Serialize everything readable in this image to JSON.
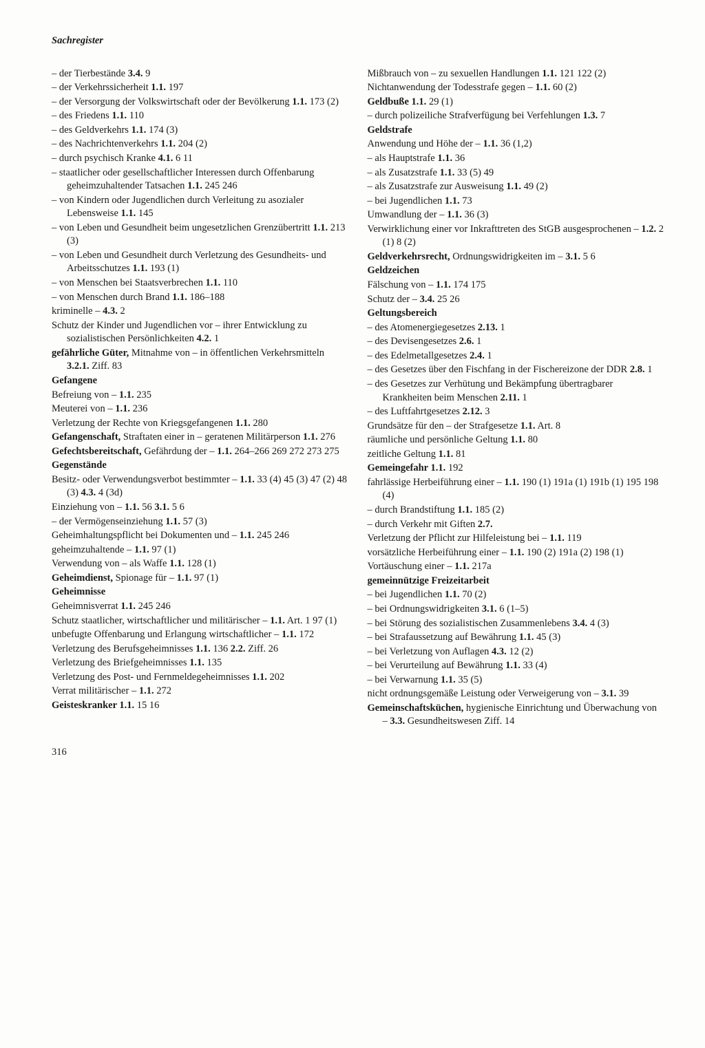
{
  "header": "Sachregister",
  "pagenum": "316",
  "left": [
    {
      "d": true,
      "h": "der Tierbestände  <b>3.4.</b> 9"
    },
    {
      "d": true,
      "h": "der Verkehrssicherheit  <b>1.1.</b> 197"
    },
    {
      "d": true,
      "h": "der Versorgung der Volkswirtschaft oder der Bevölkerung  <b>1.1.</b> 173 (2)"
    },
    {
      "d": true,
      "h": "des Friedens  <b>1.1.</b> 110"
    },
    {
      "d": true,
      "h": "des Geldverkehrs  <b>1.1.</b> 174 (3)"
    },
    {
      "d": true,
      "h": "des Nachrichtenverkehrs  <b>1.1.</b> 204 (2)"
    },
    {
      "d": true,
      "h": "durch psychisch Kranke  <b>4.1.</b> 6 11"
    },
    {
      "d": true,
      "h": "staatlicher oder gesellschaftlicher Interessen durch Offenbarung geheimzuhaltender Tatsachen  <b>1.1.</b> 245 246"
    },
    {
      "d": true,
      "h": "von Kindern oder Jugendlichen durch Verleitung zu asozialer Lebensweise  <b>1.1.</b> 145"
    },
    {
      "d": true,
      "h": "von Leben und Gesundheit beim ungesetzlichen Grenzübertritt  <b>1.1.</b> 213 (3)"
    },
    {
      "d": true,
      "h": "von Leben und Gesundheit durch Verletzung des Gesundheits- und Arbeitsschutzes <b>1.1.</b> 193 (1)"
    },
    {
      "d": true,
      "h": "von Menschen bei Staatsverbrechen  <b>1.1.</b> 110"
    },
    {
      "d": true,
      "h": "von Menschen durch Brand  <b>1.1.</b> 186–188"
    },
    {
      "d": false,
      "h": "kriminelle –  <b>4.3.</b> 2"
    },
    {
      "d": false,
      "h": "Schutz der Kinder und Jugendlichen vor – ihrer Entwicklung zu sozialistischen Persönlichkeiten  <b>4.2.</b> 1"
    },
    {
      "d": false,
      "h": "<b>gefährliche Güter,</b> Mitnahme von – in öffentlichen Verkehrsmitteln  <b>3.2.1.</b> Ziff. 83"
    },
    {
      "d": false,
      "h": "<b>Gefangene</b>"
    },
    {
      "d": false,
      "h": "Befreiung von –  <b>1.1.</b> 235"
    },
    {
      "d": false,
      "h": "Meuterei von –  <b>1.1.</b> 236"
    },
    {
      "d": false,
      "h": "Verletzung der Rechte von Kriegsgefangenen  <b>1.1.</b> 280"
    },
    {
      "d": false,
      "h": "<b>Gefangenschaft,</b> Straftaten einer in – geratenen Militärperson  <b>1.1.</b> 276"
    },
    {
      "d": false,
      "h": "<b>Gefechtsbereitschaft,</b> Gefährdung der –  <b>1.1.</b> 264–266 269 272 273 275"
    },
    {
      "d": false,
      "h": "<b>Gegenstände</b>"
    },
    {
      "d": false,
      "h": "Besitz- oder Verwendungsverbot bestimmter – <b>1.1.</b> 33 (4) 45 (3) 47 (2) 48 (3)  <b>4.3.</b> 4 (3d)"
    },
    {
      "d": false,
      "h": "Einziehung von –  <b>1.1.</b> 56  <b>3.1.</b> 5 6"
    },
    {
      "d": true,
      "h": "der Vermögenseinziehung  <b>1.1.</b> 57 (3)"
    },
    {
      "d": false,
      "h": "Geheimhaltungspflicht bei Dokumenten und – <b>1.1.</b> 245 246"
    },
    {
      "d": false,
      "h": "geheimzuhaltende –  <b>1.1.</b> 97 (1)"
    },
    {
      "d": false,
      "h": "Verwendung von – als Waffe  <b>1.1.</b> 128 (1)"
    },
    {
      "d": false,
      "h": "<b>Geheimdienst,</b> Spionage für –  <b>1.1.</b> 97 (1)"
    },
    {
      "d": false,
      "h": "<b>Geheimnisse</b>"
    },
    {
      "d": false,
      "h": "Geheimnisverrat  <b>1.1.</b> 245 246"
    },
    {
      "d": false,
      "h": "Schutz staatlicher, wirtschaftlicher und militärischer –  <b>1.1.</b> Art. 1 97 (1)"
    },
    {
      "d": false,
      "h": "unbefugte Offenbarung und Erlangung wirtschaftlicher –  <b>1.1.</b> 172"
    },
    {
      "d": false,
      "h": "Verletzung des Berufsgeheimnisses  <b>1.1.</b> 136  <b>2.2.</b> Ziff. 26"
    },
    {
      "d": false,
      "h": "Verletzung des Briefgeheimnisses  <b>1.1.</b> 135"
    },
    {
      "d": false,
      "h": "Verletzung des Post- und Fernmeldegeheimnisses  <b>1.1.</b> 202"
    },
    {
      "d": false,
      "h": "Verrat militärischer –  <b>1.1.</b> 272"
    },
    {
      "d": false,
      "h": "<b>Geisteskranker  1.1.</b> 15 16"
    }
  ],
  "right": [
    {
      "d": false,
      "h": "Mißbrauch von – zu sexuellen Handlungen  <b>1.1.</b> 121 122 (2)"
    },
    {
      "d": false,
      "h": "Nichtanwendung der Todesstrafe gegen –  <b>1.1.</b> 60 (2)"
    },
    {
      "d": false,
      "h": "<b>Geldbuße  1.1.</b> 29 (1)"
    },
    {
      "d": true,
      "h": "durch polizeiliche Strafverfügung bei Verfehlungen  <b>1.3.</b> 7"
    },
    {
      "d": false,
      "h": "<b>Geldstrafe</b>"
    },
    {
      "d": false,
      "h": "Anwendung und Höhe der –  <b>1.1.</b> 36 (1,2)"
    },
    {
      "d": true,
      "h": "als Hauptstrafe  <b>1.1.</b> 36"
    },
    {
      "d": true,
      "h": "als Zusatzstrafe  <b>1.1.</b> 33 (5) 49"
    },
    {
      "d": true,
      "h": "als Zusatzstrafe zur Ausweisung  <b>1.1.</b> 49 (2)"
    },
    {
      "d": true,
      "h": "bei Jugendlichen  <b>1.1.</b> 73"
    },
    {
      "d": false,
      "h": "Umwandlung der –  <b>1.1.</b> 36 (3)"
    },
    {
      "d": false,
      "h": "Verwirklichung einer vor Inkrafttreten des StGB ausgesprochenen –  <b>1.2.</b> 2 (1) 8 (2)"
    },
    {
      "d": false,
      "h": "<b>Geldverkehrsrecht,</b> Ordnungswidrigkeiten im – <b>3.1.</b> 5 6"
    },
    {
      "d": false,
      "h": "<b>Geldzeichen</b>"
    },
    {
      "d": false,
      "h": "Fälschung von –  <b>1.1.</b> 174 175"
    },
    {
      "d": false,
      "h": "Schutz der –  <b>3.4.</b> 25 26"
    },
    {
      "d": false,
      "h": "<b>Geltungsbereich</b>"
    },
    {
      "d": true,
      "h": "des Atomenergiegesetzes  <b>2.13.</b> 1"
    },
    {
      "d": true,
      "h": "des Devisengesetzes  <b>2.6.</b> 1"
    },
    {
      "d": true,
      "h": "des Edelmetallgesetzes  <b>2.4.</b> 1"
    },
    {
      "d": true,
      "h": "des Gesetzes über den Fischfang in der Fischereizone der DDR  <b>2.8.</b> 1"
    },
    {
      "d": true,
      "h": "des Gesetzes zur Verhütung und Bekämpfung übertragbarer Krankheiten beim Menschen  <b>2.11.</b> 1"
    },
    {
      "d": true,
      "h": "des Luftfahrtgesetzes  <b>2.12.</b> 3"
    },
    {
      "d": false,
      "h": "Grundsätze für den – der Strafgesetze  <b>1.1.</b> Art. 8"
    },
    {
      "d": false,
      "h": "räumliche und persönliche Geltung  <b>1.1.</b> 80"
    },
    {
      "d": false,
      "h": "zeitliche Geltung  <b>1.1.</b> 81"
    },
    {
      "d": false,
      "h": "<b>Gemeingefahr  1.1.</b> 192"
    },
    {
      "d": false,
      "h": "fahrlässige Herbeiführung einer –  <b>1.1.</b> 190 (1) 191a (1) 191b (1) 195 198 (4)"
    },
    {
      "d": true,
      "h": "durch Brandstiftung  <b>1.1.</b> 185 (2)"
    },
    {
      "d": true,
      "h": "durch Verkehr mit Giften  <b>2.7.</b>"
    },
    {
      "d": false,
      "h": "Verletzung der Pflicht zur Hilfeleistung bei – <b>1.1.</b> 119"
    },
    {
      "d": false,
      "h": "vorsätzliche Herbeiführung einer –  <b>1.1.</b> 190 (2) 191a (2) 198 (1)"
    },
    {
      "d": false,
      "h": "Vortäuschung einer –  <b>1.1.</b> 217a"
    },
    {
      "d": false,
      "h": "<b>gemeinnützige Freizeitarbeit</b>"
    },
    {
      "d": true,
      "h": "bei Jugendlichen  <b>1.1.</b> 70 (2)"
    },
    {
      "d": true,
      "h": "bei Ordnungswidrigkeiten  <b>3.1.</b> 6 (1–5)"
    },
    {
      "d": true,
      "h": "bei Störung des sozialistischen Zusammenlebens  <b>3.4.</b> 4 (3)"
    },
    {
      "d": true,
      "h": "bei Strafaussetzung auf Bewährung  <b>1.1.</b> 45 (3)"
    },
    {
      "d": true,
      "h": "bei Verletzung von Auflagen  <b>4.3.</b> 12 (2)"
    },
    {
      "d": true,
      "h": "bei Verurteilung auf Bewährung  <b>1.1.</b> 33 (4)"
    },
    {
      "d": true,
      "h": "bei Verwarnung  <b>1.1.</b> 35 (5)"
    },
    {
      "d": false,
      "h": "nicht ordnungsgemäße Leistung oder Verweigerung von –  <b>3.1.</b> 39"
    },
    {
      "d": false,
      "h": "<b>Gemeinschaftsküchen,</b> hygienische Einrichtung und Überwachung von –  <b>3.3.</b> Gesundheitswesen Ziff. 14"
    }
  ]
}
